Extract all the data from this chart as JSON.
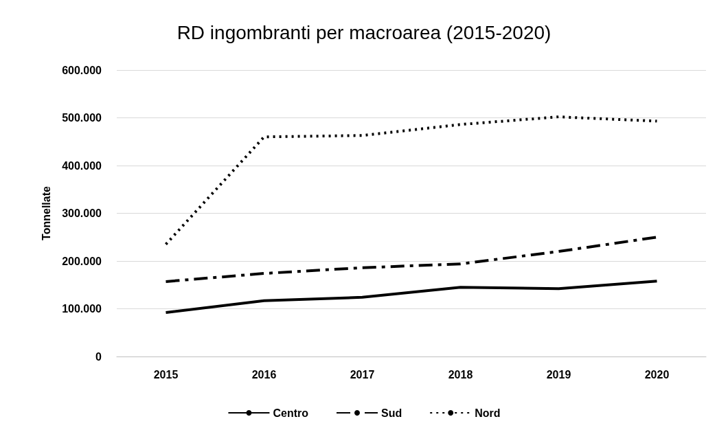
{
  "chart_data": {
    "type": "line",
    "title": "RD ingombranti per macroarea (2015-2020)",
    "ylabel": "Tonnellate",
    "categories": [
      "2015",
      "2016",
      "2017",
      "2018",
      "2019",
      "2020"
    ],
    "series": [
      {
        "name": "Centro",
        "color": "#000000",
        "line_style": "solid",
        "values": [
          92000,
          117000,
          124000,
          145000,
          142000,
          158000
        ]
      },
      {
        "name": "Sud",
        "color": "#000000",
        "line_style": "dashdot",
        "values": [
          157000,
          174000,
          186000,
          194000,
          220000,
          250000
        ]
      },
      {
        "name": "Nord",
        "color": "#000000",
        "line_style": "dotted",
        "values": [
          235000,
          460000,
          463000,
          486000,
          502000,
          493000
        ]
      }
    ],
    "ylim": [
      0,
      600000
    ],
    "yticks": [
      {
        "value": 0,
        "label": "0"
      },
      {
        "value": 100000,
        "label": "100.000"
      },
      {
        "value": 200000,
        "label": "200.000"
      },
      {
        "value": 300000,
        "label": "300.000"
      },
      {
        "value": 400000,
        "label": "400.000"
      },
      {
        "value": 500000,
        "label": "500.000"
      },
      {
        "value": 600000,
        "label": "600.000"
      }
    ],
    "grid": "y",
    "legend": "bottom",
    "marker": "none"
  }
}
